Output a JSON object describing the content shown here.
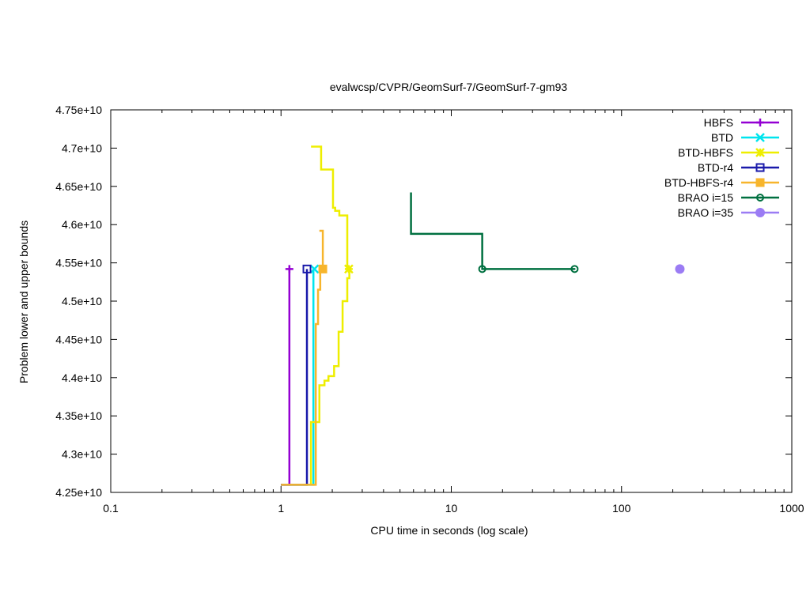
{
  "chart_data": {
    "type": "line",
    "title": "evalwcsp/CVPR/GeomSurf-7/GeomSurf-7-gm93",
    "xlabel": "CPU time in seconds (log scale)",
    "ylabel": "Problem lower and upper bounds",
    "x_scale": "log",
    "xlim": [
      0.1,
      1000
    ],
    "ylim": [
      42500000000,
      47500000000
    ],
    "grid": false,
    "legend_position": "top-right",
    "x_ticks": [
      {
        "value": 0.1,
        "label": "0.1"
      },
      {
        "value": 1,
        "label": "1"
      },
      {
        "value": 10,
        "label": "10"
      },
      {
        "value": 100,
        "label": "100"
      },
      {
        "value": 1000,
        "label": "1000"
      }
    ],
    "y_ticks": [
      {
        "value": 42500000000,
        "label": "4.25e+10"
      },
      {
        "value": 43000000000,
        "label": "4.3e+10"
      },
      {
        "value": 43500000000,
        "label": "4.35e+10"
      },
      {
        "value": 44000000000,
        "label": "4.4e+10"
      },
      {
        "value": 44500000000,
        "label": "4.45e+10"
      },
      {
        "value": 45000000000,
        "label": "4.5e+10"
      },
      {
        "value": 45500000000,
        "label": "4.55e+10"
      },
      {
        "value": 46000000000,
        "label": "4.6e+10"
      },
      {
        "value": 46500000000,
        "label": "4.65e+10"
      },
      {
        "value": 47000000000,
        "label": "4.7e+10"
      },
      {
        "value": 47500000000,
        "label": "4.75e+10"
      }
    ],
    "series": [
      {
        "name": "HBFS",
        "color": "#9400d3",
        "marker": "plus",
        "points": [
          [
            1.0,
            42600000000
          ],
          [
            1.12,
            42600000000
          ],
          [
            1.12,
            45420000000
          ]
        ],
        "marker_points": [
          [
            1.12,
            45420000000
          ]
        ]
      },
      {
        "name": "BTD",
        "color": "#00e5ee",
        "marker": "cross",
        "points": [
          [
            1.0,
            42600000000
          ],
          [
            1.55,
            42600000000
          ],
          [
            1.55,
            45420000000
          ]
        ],
        "marker_points": [
          [
            1.57,
            45420000000
          ]
        ]
      },
      {
        "name": "BTD-HBFS",
        "color": "#eeee00",
        "marker": "star",
        "points": [
          [
            1.5,
            42600000000
          ],
          [
            1.5,
            43420000000
          ],
          [
            1.68,
            43420000000
          ],
          [
            1.68,
            43900000000
          ],
          [
            1.8,
            43900000000
          ],
          [
            1.8,
            43960000000
          ],
          [
            1.9,
            43960000000
          ],
          [
            1.9,
            44020000000
          ],
          [
            2.05,
            44020000000
          ],
          [
            2.05,
            44150000000
          ],
          [
            2.18,
            44150000000
          ],
          [
            2.18,
            44600000000
          ],
          [
            2.3,
            44600000000
          ],
          [
            2.3,
            45000000000
          ],
          [
            2.45,
            45000000000
          ],
          [
            2.45,
            45300000000
          ],
          [
            2.52,
            45300000000
          ],
          [
            2.52,
            45420000000
          ],
          [
            2.45,
            45420000000
          ],
          [
            2.45,
            46120000000
          ],
          [
            2.2,
            46120000000
          ],
          [
            2.2,
            46180000000
          ],
          [
            2.08,
            46180000000
          ],
          [
            2.08,
            46220000000
          ],
          [
            2.02,
            46220000000
          ],
          [
            2.02,
            46720000000
          ],
          [
            1.72,
            46720000000
          ],
          [
            1.72,
            47020000000
          ],
          [
            1.5,
            47020000000
          ]
        ],
        "marker_points": [
          [
            2.5,
            45420000000
          ]
        ]
      },
      {
        "name": "BTD-r4",
        "color": "#1a1aaa",
        "marker": "square-open",
        "points": [
          [
            1.0,
            42600000000
          ],
          [
            1.42,
            42600000000
          ],
          [
            1.42,
            45420000000
          ]
        ],
        "marker_points": [
          [
            1.42,
            45420000000
          ]
        ]
      },
      {
        "name": "BTD-HBFS-r4",
        "color": "#f7b52c",
        "marker": "square-filled",
        "points": [
          [
            1.0,
            42600000000
          ],
          [
            1.6,
            42600000000
          ],
          [
            1.6,
            44700000000
          ],
          [
            1.65,
            44700000000
          ],
          [
            1.65,
            45150000000
          ],
          [
            1.7,
            45150000000
          ],
          [
            1.7,
            45420000000
          ],
          [
            1.76,
            45420000000
          ],
          [
            1.76,
            45920000000
          ],
          [
            1.68,
            45920000000
          ]
        ],
        "marker_points": [
          [
            1.76,
            45420000000
          ]
        ]
      },
      {
        "name": "BRAO i=15",
        "color": "#007040",
        "marker": "circle-open",
        "points": [
          [
            5.8,
            46420000000
          ],
          [
            5.8,
            45880000000
          ],
          [
            15.2,
            45880000000
          ],
          [
            15.2,
            45420000000
          ],
          [
            53,
            45420000000
          ]
        ],
        "marker_points": [
          [
            15.2,
            45420000000
          ],
          [
            53,
            45420000000
          ]
        ]
      },
      {
        "name": "BRAO i=35",
        "color": "#9b7cf4",
        "marker": "circle-filled",
        "points": [],
        "marker_points": [
          [
            220,
            45420000000
          ]
        ]
      }
    ]
  }
}
